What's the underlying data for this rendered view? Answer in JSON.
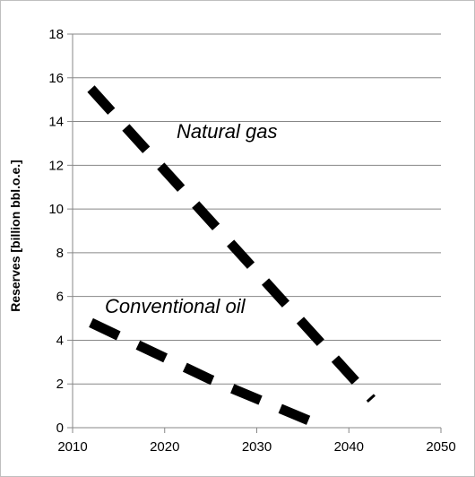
{
  "chart_data": {
    "type": "line",
    "title": "",
    "xlabel": "",
    "ylabel": "Reserves [billion bbl.o.e.]",
    "xlim": [
      2010,
      2050
    ],
    "ylim": [
      0,
      18
    ],
    "xticks": [
      "2010",
      "2020",
      "2030",
      "2040",
      "2050"
    ],
    "yticks": [
      "0",
      "2",
      "4",
      "6",
      "8",
      "10",
      "12",
      "14",
      "16",
      "18"
    ],
    "grid": true,
    "legend": "none",
    "series": [
      {
        "name": "Natural gas",
        "x": [
          2012,
          2042.5
        ],
        "y": [
          15.5,
          1.3
        ]
      },
      {
        "name": "Conventional oil",
        "x": [
          2012,
          2025,
          2037.5
        ],
        "y": [
          4.8,
          2.2,
          0.0
        ]
      }
    ]
  }
}
